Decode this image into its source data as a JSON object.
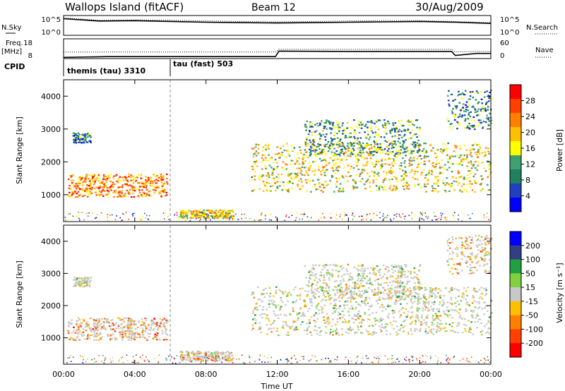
{
  "header": {
    "station": "Wallops Island (fitACF)",
    "beam": "Beam 12",
    "date": "30/Aug/2009"
  },
  "top_panels": {
    "nsky_label": "N.Sky",
    "nsky_ticks": [
      "10^5",
      "10^0"
    ],
    "nsearch_label": "N.Search",
    "nsearch_ticks": [
      "10^5",
      "10^0"
    ],
    "freq_label": "Freq.",
    "freq_unit": "[MHz]",
    "freq_ticks": [
      "18",
      "8"
    ],
    "nave_label": "Nave",
    "nave_ticks": [
      "60",
      "0"
    ],
    "cpid_label": "CPID",
    "cpid_modes": [
      "themis (tau) 3310",
      "tau (fast) 503"
    ]
  },
  "colors": {
    "power_scale": [
      "#0000ff",
      "#2040c0",
      "#208060",
      "#40a070",
      "#ffff00",
      "#ffc000",
      "#ff8000",
      "#ff4000",
      "#ff0000"
    ],
    "velocity_scale": [
      "#0000ff",
      "#304080",
      "#20a040",
      "#80d040",
      "#c8c8c8",
      "#ffc000",
      "#ff8000",
      "#ff4000",
      "#ff0000"
    ],
    "ground_scatter": "#c8c8c8"
  },
  "chart_data": [
    {
      "type": "line",
      "name": "nsky-nsearch",
      "x": [
        0,
        2,
        4,
        6,
        8,
        10,
        12,
        14,
        16,
        18,
        20,
        22,
        24
      ],
      "series": [
        {
          "values": [
            4.2,
            3.6,
            3.7,
            3.5,
            3.3,
            3.2,
            3.1,
            3.2,
            3.3,
            3.4,
            3.5,
            3.3,
            3.0
          ]
        },
        {
          "values": [
            4.4,
            3.8,
            3.9,
            3.8,
            3.6,
            3.5,
            3.4,
            3.5,
            3.6,
            3.7,
            3.7,
            3.5,
            3.2
          ]
        }
      ],
      "ylim": [
        0,
        5
      ]
    },
    {
      "type": "line",
      "name": "frequency-nave",
      "x": [
        0,
        2.5,
        6,
        10,
        11.9,
        12.1,
        16,
        20,
        21.8,
        22,
        23.2,
        24
      ],
      "series": [
        {
          "values": [
            8.6,
            9.0,
            9.0,
            9.0,
            9.0,
            11.8,
            11.6,
            11.6,
            11.6,
            9.6,
            10.6,
            10.6
          ]
        },
        {
          "values": [
            20,
            20,
            20,
            20,
            20,
            28,
            28,
            28,
            28,
            20,
            22,
            22
          ]
        }
      ],
      "ylim": [
        8,
        18
      ]
    },
    {
      "type": "heatmap",
      "name": "power",
      "xlabel": "",
      "ylabel": "Slant Range [km]",
      "x_ticks": [
        "00:00",
        "04:00",
        "08:00",
        "12:00",
        "16:00",
        "20:00",
        "00:00"
      ],
      "y_ticks": [
        "1000",
        "2000",
        "3000",
        "4000"
      ],
      "xlim": [
        0,
        24
      ],
      "ylim": [
        180,
        4500
      ],
      "colorbar_label": "Power [dB]",
      "colorbar_ticks": [
        "4",
        "8",
        "12",
        "16",
        "20",
        "24",
        "28"
      ],
      "regions": [
        {
          "t0": 0.2,
          "t1": 5.8,
          "r0": 950,
          "r1": 1650,
          "level": 0.72
        },
        {
          "t0": 0.5,
          "t1": 1.5,
          "r0": 2600,
          "r1": 2900,
          "level": 0.25
        },
        {
          "t0": 6.5,
          "t1": 9.5,
          "r0": 300,
          "r1": 550,
          "level": 0.55
        },
        {
          "t0": 10.5,
          "t1": 24,
          "r0": 1100,
          "r1": 2600,
          "level": 0.55
        },
        {
          "t0": 13.5,
          "t1": 20,
          "r0": 2200,
          "r1": 3300,
          "level": 0.35
        },
        {
          "t0": 21.5,
          "t1": 24,
          "r0": 3000,
          "r1": 4200,
          "level": 0.3
        }
      ]
    },
    {
      "type": "heatmap",
      "name": "velocity",
      "xlabel": "Time UT",
      "ylabel": "Slant Range [km]",
      "x_ticks": [
        "00:00",
        "04:00",
        "08:00",
        "12:00",
        "16:00",
        "20:00",
        "00:00"
      ],
      "y_ticks": [
        "1000",
        "2000",
        "3000",
        "4000"
      ],
      "xlim": [
        0,
        24
      ],
      "ylim": [
        180,
        4500
      ],
      "colorbar_label": "Velocity [m s^-1]",
      "colorbar_ticks": [
        "200",
        "100",
        "50",
        "15",
        "-15",
        "-50",
        "-100",
        "-200"
      ],
      "regions": [
        {
          "t0": 0.2,
          "t1": 5.8,
          "r0": 950,
          "r1": 1650,
          "level": 0.68
        },
        {
          "t0": 0.5,
          "t1": 1.5,
          "r0": 2600,
          "r1": 2900,
          "level": 0.5
        },
        {
          "t0": 6.5,
          "t1": 9.5,
          "r0": 300,
          "r1": 600,
          "level": 0.65
        },
        {
          "t0": 10.5,
          "t1": 24,
          "r0": 1100,
          "r1": 2600,
          "level": 0.5
        },
        {
          "t0": 13.5,
          "t1": 20,
          "r0": 2200,
          "r1": 3300,
          "level": 0.5
        },
        {
          "t0": 21.5,
          "t1": 24,
          "r0": 3000,
          "r1": 4200,
          "level": 0.62
        }
      ]
    }
  ]
}
